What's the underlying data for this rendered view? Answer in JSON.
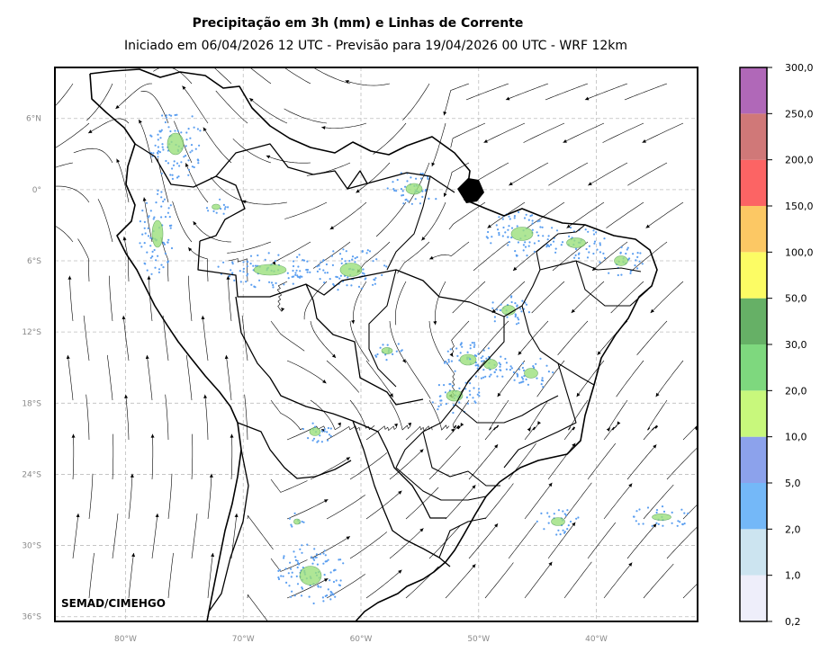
{
  "title": "Precipitação em 3h (mm) e Linhas de Corrente",
  "subtitle": "Iniciado em 06/04/2026 12 UTC - Previsão para 19/04/2026 00 UTC - WRF 12km",
  "credit": "SEMAD/CIMEHGO",
  "map": {
    "lat_ticks": [
      "6°N",
      "0°",
      "6°S",
      "12°S",
      "18°S",
      "24°S",
      "30°S",
      "36°S"
    ],
    "lon_ticks": [
      "80°W",
      "70°W",
      "60°W",
      "50°W",
      "40°W"
    ],
    "lat_values": [
      6,
      0,
      -6,
      -12,
      -18,
      -24,
      -30,
      -36
    ],
    "lon_values": [
      -80,
      -70,
      -60,
      -50,
      -40
    ],
    "extent": {
      "lon_min": -86,
      "lon_max": -31.4,
      "lat_min": -36.4,
      "lat_max": 10.3
    }
  },
  "colorbar": {
    "labels": [
      "0,2",
      "1,0",
      "2,0",
      "5,0",
      "10,0",
      "20,0",
      "30,0",
      "50,0",
      "100,0",
      "150,0",
      "200,0",
      "250,0",
      "300,0"
    ],
    "colors": [
      "#eeeefa",
      "#cce4f0",
      "#74b8f8",
      "#8ca2ec",
      "#c8f87c",
      "#7ed87e",
      "#66b066",
      "#fcfc64",
      "#fcc864",
      "#fc6464",
      "#d07878",
      "#b068b8"
    ]
  }
}
